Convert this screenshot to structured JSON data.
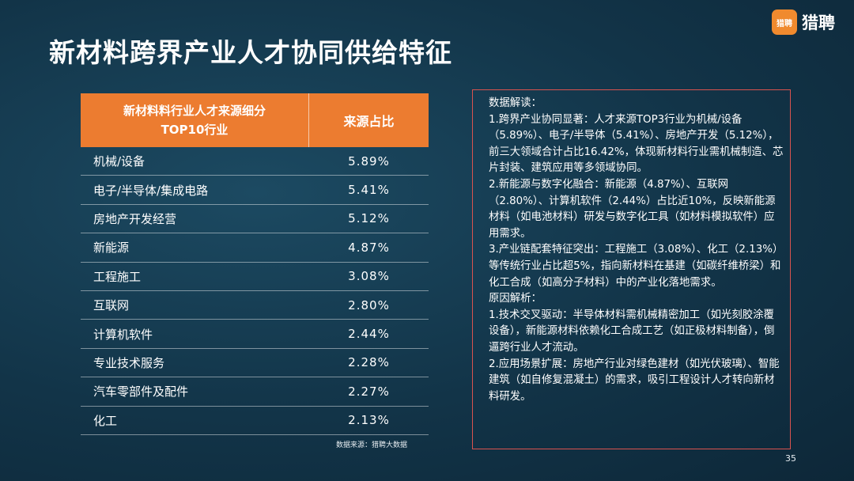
{
  "title": "新材料跨界产业人才协同供给特征",
  "logo": {
    "badge": "猎聘",
    "text": "猎聘"
  },
  "table": {
    "header_line1": "新材料料行业人才来源细分",
    "header_line2": "TOP10行业",
    "header_share": "来源占比",
    "rows": [
      {
        "industry": "机械/设备",
        "share": "5.89%"
      },
      {
        "industry": "电子/半导体/集成电路",
        "share": "5.41%"
      },
      {
        "industry": "房地产开发经营",
        "share": "5.12%"
      },
      {
        "industry": "新能源",
        "share": "4.87%"
      },
      {
        "industry": "工程施工",
        "share": "3.08%"
      },
      {
        "industry": "互联网",
        "share": "2.80%"
      },
      {
        "industry": "计算机软件",
        "share": "2.44%"
      },
      {
        "industry": "专业技术服务",
        "share": "2.28%"
      },
      {
        "industry": "汽车零部件及配件",
        "share": "2.27%"
      },
      {
        "industry": "化工",
        "share": "2.13%"
      }
    ]
  },
  "source": "数据来源：猎聘大数据",
  "notes": {
    "heading": "数据解读：",
    "p1": "1.跨界产业协同显著：人才来源TOP3行业为机械/设备（5.89%）、电子/半导体（5.41%）、房地产开发（5.12%），前三大领域合计占比16.42%，体现新材料行业需机械制造、芯片封装、建筑应用等多领域协同。",
    "p2": "2.新能源与数字化融合：新能源（4.87%）、互联网（2.80%）、计算机软件（2.44%）占比近10%，反映新能源材料（如电池材料）研发与数字化工具（如材料模拟软件）应用需求。",
    "p3": "3.产业链配套特征突出：工程施工（3.08%）、化工（2.13%）等传统行业占比超5%，指向新材料在基建（如碳纤维桥梁）和化工合成（如高分子材料）中的产业化落地需求。",
    "heading2": "原因解析：",
    "p4": "1.技术交叉驱动：半导体材料需机械精密加工（如光刻胶涂覆设备），新能源材料依赖化工合成工艺（如正极材料制备），倒逼跨行业人才流动。",
    "p5": "2.应用场景扩展：房地产行业对绿色建材（如光伏玻璃）、智能建筑（如自修复混凝土）的需求，吸引工程设计人才转向新材料研发。"
  },
  "page_number": "35",
  "colors": {
    "accent": "#ec7c30",
    "background": "#123448",
    "note_border": "#d9534f"
  }
}
